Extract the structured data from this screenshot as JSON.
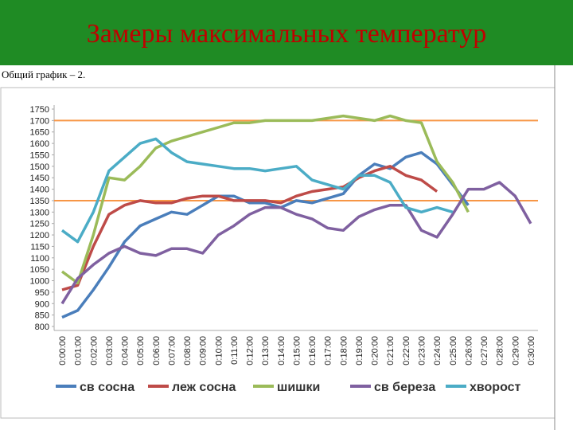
{
  "header": {
    "title": "Замеры максимальных температур"
  },
  "subtitle": "Общий график – 2.",
  "chart_data": {
    "type": "line",
    "categories": [
      "0:00:00",
      "0:01:00",
      "0:02:00",
      "0:03:00",
      "0:04:00",
      "0:05:00",
      "0:06:00",
      "0:07:00",
      "0:08:00",
      "0:09:00",
      "0:10:00",
      "0:11:00",
      "0:12:00",
      "0:13:00",
      "0:14:00",
      "0:15:00",
      "0:16:00",
      "0:17:00",
      "0:18:00",
      "0:19:00",
      "0:20:00",
      "0:21:00",
      "0:22:00",
      "0:23:00",
      "0:24:00",
      "0:25:00",
      "0:26:00",
      "0:27:00",
      "0:28:00",
      "0:29:00",
      "0:30:00"
    ],
    "series": [
      {
        "name": "св сосна",
        "color": "#4a7ebb",
        "values": [
          840,
          870,
          960,
          1060,
          1170,
          1240,
          1270,
          1300,
          1290,
          1330,
          1370,
          1370,
          1340,
          1340,
          1320,
          1350,
          1340,
          1360,
          1380,
          1460,
          1510,
          1490,
          1540,
          1560,
          1510,
          1420,
          1330,
          null,
          null,
          null,
          null
        ]
      },
      {
        "name": "леж сосна",
        "color": "#be4b48",
        "values": [
          960,
          980,
          1150,
          1290,
          1330,
          1350,
          1340,
          1340,
          1360,
          1370,
          1370,
          1350,
          1350,
          1350,
          1340,
          1370,
          1390,
          1400,
          1410,
          1450,
          1480,
          1500,
          1460,
          1440,
          1390,
          null,
          null,
          null,
          null,
          null,
          null
        ]
      },
      {
        "name": "шишки",
        "color": "#9bbb59",
        "values": [
          1040,
          990,
          1200,
          1450,
          1440,
          1500,
          1580,
          1610,
          1630,
          1650,
          1670,
          1690,
          1690,
          1700,
          1700,
          1700,
          1700,
          1710,
          1720,
          1710,
          1700,
          1720,
          1700,
          1690,
          1520,
          1430,
          1300,
          null,
          null,
          null,
          null
        ]
      },
      {
        "name": "св береза",
        "color": "#7f60a0",
        "values": [
          900,
          1010,
          1070,
          1120,
          1150,
          1120,
          1110,
          1140,
          1140,
          1120,
          1200,
          1240,
          1290,
          1320,
          1320,
          1290,
          1270,
          1230,
          1220,
          1280,
          1310,
          1330,
          1330,
          1220,
          1190,
          1290,
          1400,
          1400,
          1430,
          1370,
          1250
        ]
      },
      {
        "name": "хворост",
        "color": "#4bacc6",
        "values": [
          1220,
          1170,
          1300,
          1480,
          1540,
          1600,
          1620,
          1560,
          1520,
          1510,
          1500,
          1490,
          1490,
          1480,
          1490,
          1500,
          1440,
          1420,
          1400,
          1460,
          1460,
          1430,
          1320,
          1300,
          1320,
          1300,
          null,
          null,
          null,
          null,
          null
        ]
      }
    ],
    "reference_lines": [
      {
        "value": 1700,
        "color": "#f79646"
      },
      {
        "value": 1350,
        "color": "#f79646"
      }
    ],
    "ylim": [
      800,
      1750
    ],
    "yticks": [
      800,
      850,
      900,
      950,
      1000,
      1050,
      1100,
      1150,
      1200,
      1250,
      1300,
      1350,
      1400,
      1450,
      1500,
      1550,
      1600,
      1650,
      1700,
      1750
    ],
    "grid": false,
    "legend": "bottom"
  }
}
